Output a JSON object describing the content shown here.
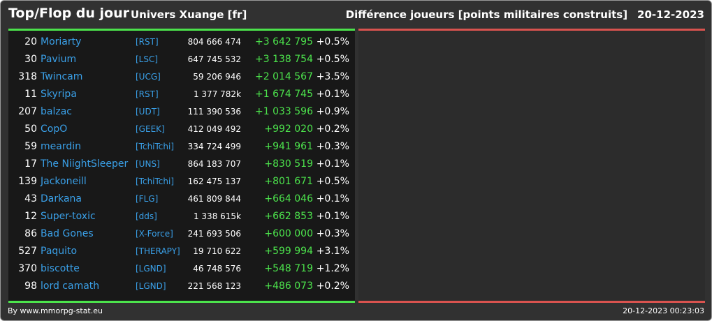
{
  "header": {
    "title": "Top/Flop du jour",
    "universe": "Univers Xuange [fr]",
    "stat_label": "Différence joueurs [points militaires construits]",
    "date": "20-12-2023"
  },
  "footer": {
    "credit": "By www.mmorpg-stat.eu",
    "timestamp": "20-12-2023 00:23:03"
  },
  "colors": {
    "background": "#313131",
    "panel_left": "#181818",
    "panel_right": "#2c2c2c",
    "green_bar": "#4ce34c",
    "red_bar": "#d9534f",
    "positive_text": "#4ce34c",
    "name_link": "#3aa0e8"
  },
  "players": [
    {
      "rank": "20",
      "name": "Moriarty",
      "alliance": "[RST]",
      "score": "804 666 474",
      "diff": "+3 642 795",
      "pct": "+0.5%"
    },
    {
      "rank": "30",
      "name": "Pavium",
      "alliance": "[LSC]",
      "score": "647 745 532",
      "diff": "+3 138 754",
      "pct": "+0.5%"
    },
    {
      "rank": "318",
      "name": "Twincam",
      "alliance": "[UCG]",
      "score": "59 206 946",
      "diff": "+2 014 567",
      "pct": "+3.5%"
    },
    {
      "rank": "11",
      "name": "Skyripa",
      "alliance": "[RST]",
      "score": "1 377 782k",
      "diff": "+1 674 745",
      "pct": "+0.1%"
    },
    {
      "rank": "207",
      "name": "balzac",
      "alliance": "[UDT]",
      "score": "111 390 536",
      "diff": "+1 033 596",
      "pct": "+0.9%"
    },
    {
      "rank": "50",
      "name": "CopO",
      "alliance": "[GEEK]",
      "score": "412 049 492",
      "diff": "+992 020",
      "pct": "+0.2%"
    },
    {
      "rank": "59",
      "name": "meardin",
      "alliance": "[TchiTchi]",
      "score": "334 724 499",
      "diff": "+941 961",
      "pct": "+0.3%"
    },
    {
      "rank": "17",
      "name": "The NiightSleeper",
      "alliance": "[UNS]",
      "score": "864 183 707",
      "diff": "+830 519",
      "pct": "+0.1%"
    },
    {
      "rank": "139",
      "name": "Jackoneill",
      "alliance": "[TchiTchi]",
      "score": "162 475 137",
      "diff": "+801 671",
      "pct": "+0.5%"
    },
    {
      "rank": "43",
      "name": "Darkana",
      "alliance": "[FLG]",
      "score": "461 809 844",
      "diff": "+664 046",
      "pct": "+0.1%"
    },
    {
      "rank": "12",
      "name": "Super-toxic",
      "alliance": "[dds]",
      "score": "1 338 615k",
      "diff": "+662 853",
      "pct": "+0.1%"
    },
    {
      "rank": "86",
      "name": "Bad Gones",
      "alliance": "[X-Force]",
      "score": "241 693 506",
      "diff": "+600 000",
      "pct": "+0.3%"
    },
    {
      "rank": "527",
      "name": "Paquito",
      "alliance": "[THERAPY]",
      "score": "19 710 622",
      "diff": "+599 994",
      "pct": "+3.1%"
    },
    {
      "rank": "370",
      "name": "biscotte",
      "alliance": "[LGND]",
      "score": "46 748 576",
      "diff": "+548 719",
      "pct": "+1.2%"
    },
    {
      "rank": "98",
      "name": "lord camath",
      "alliance": "[LGND]",
      "score": "221 568 123",
      "diff": "+486 073",
      "pct": "+0.2%"
    }
  ]
}
